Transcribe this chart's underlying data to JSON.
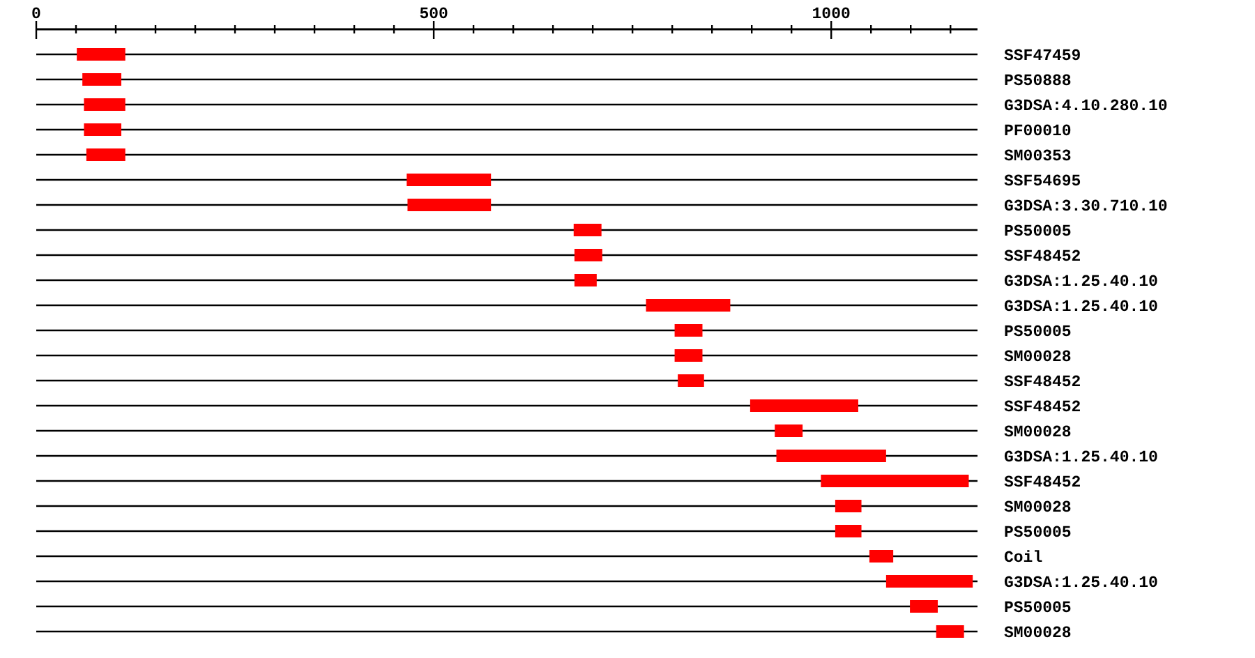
{
  "chart_data": {
    "type": "bar",
    "orientation": "horizontal",
    "color": "#ff0000",
    "grid": "y",
    "categories": [
      "SSF47459",
      "PS50888",
      "G3DSA:4.10.280.10",
      "PF00010",
      "SM00353",
      "SSF54695",
      "G3DSA:3.30.710.10",
      "PS50005",
      "SSF48452",
      "G3DSA:1.25.40.10",
      "G3DSA:1.25.40.10",
      "PS50005",
      "SM00028",
      "SSF48452",
      "SSF48452",
      "SM00028",
      "G3DSA:1.25.40.10",
      "SSF48452",
      "SM00028",
      "PS50005",
      "Coil",
      "G3DSA:1.25.40.10",
      "PS50005",
      "SM00028"
    ],
    "base": [
      51,
      58,
      60,
      60,
      63,
      466,
      467,
      676,
      677,
      677,
      767,
      803,
      803,
      807,
      898,
      929,
      931,
      987,
      1005,
      1005,
      1048,
      1069,
      1099,
      1132
    ],
    "values": [
      61,
      49,
      52,
      47,
      49,
      106,
      105,
      35,
      35,
      28,
      106,
      35,
      35,
      33,
      136,
      35,
      138,
      186,
      33,
      33,
      30,
      109,
      35,
      35
    ],
    "xlim": [
      0,
      1184
    ],
    "xticks": [
      0,
      {
        "value": 50,
        "label": null
      },
      {
        "value": 100,
        "label": null
      },
      {
        "value": 150,
        "label": null
      },
      {
        "value": 200,
        "label": null
      },
      {
        "value": 250,
        "label": null
      },
      {
        "value": 300,
        "label": null
      },
      {
        "value": 350,
        "label": null
      },
      {
        "value": 400,
        "label": null
      },
      {
        "value": 450,
        "label": null
      },
      500,
      {
        "value": 550,
        "label": null
      },
      {
        "value": 600,
        "label": null
      },
      {
        "value": 650,
        "label": null
      },
      {
        "value": 700,
        "label": null
      },
      {
        "value": 750,
        "label": null
      },
      {
        "value": 800,
        "label": null
      },
      {
        "value": 850,
        "label": null
      },
      {
        "value": 900,
        "label": null
      },
      {
        "value": 950,
        "label": null
      },
      1000,
      {
        "value": 1050,
        "label": null
      },
      {
        "value": 1100,
        "label": null
      },
      {
        "value": 1150,
        "label": null
      }
    ]
  }
}
